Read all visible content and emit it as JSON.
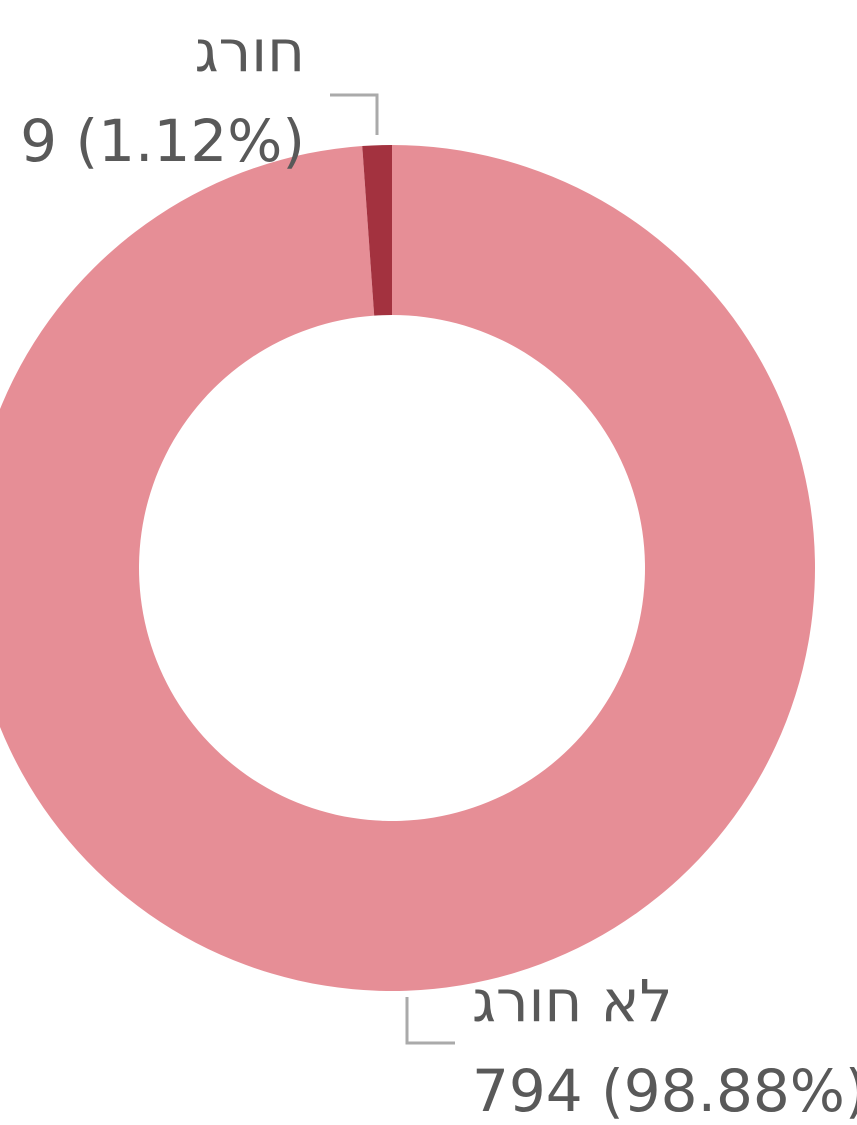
{
  "chart_data": {
    "type": "donut",
    "categories": [
      "לא חורג",
      "חורג"
    ],
    "values": [
      794,
      9
    ],
    "value_labels": [
      "794 (98.88%)",
      "9 (1.12%)"
    ],
    "colors": [
      "#e68e96",
      "#a3323f"
    ]
  }
}
